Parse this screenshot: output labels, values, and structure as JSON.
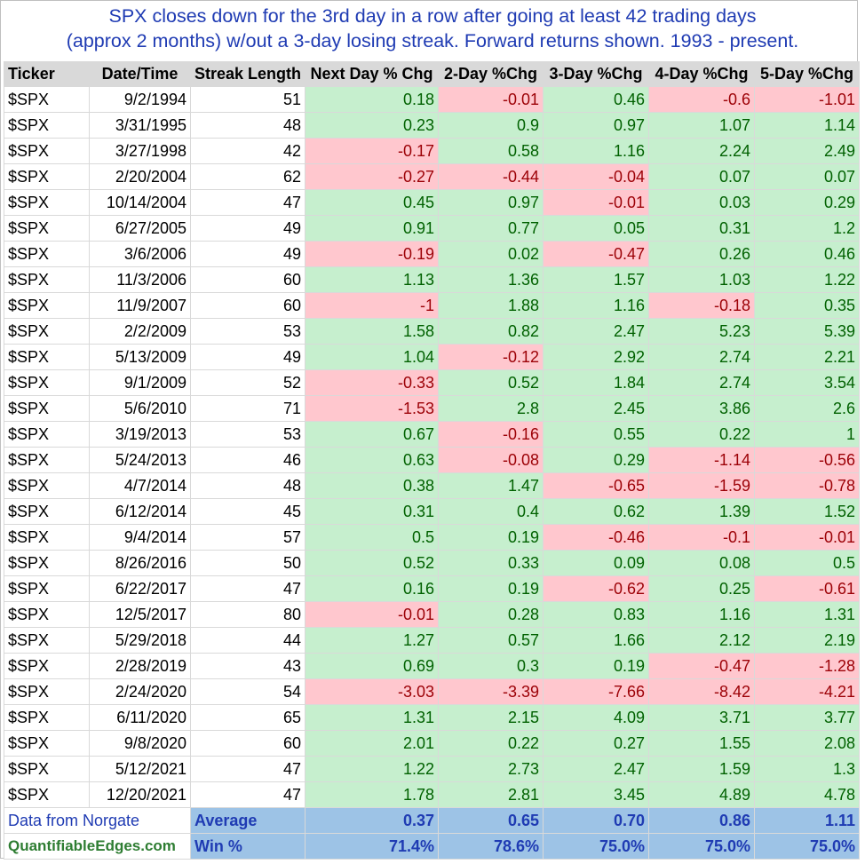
{
  "title": {
    "line1": "SPX closes down for the 3rd day in a row after going at least 42 trading days",
    "line2": "(approx 2 months) w/out a 3-day losing streak. Forward returns shown. 1993 - present."
  },
  "columns": [
    "Ticker",
    "Date/Time",
    "Streak Length",
    "Next Day % Chg",
    "2-Day %Chg",
    "3-Day %Chg",
    "4-Day %Chg",
    "5-Day %Chg"
  ],
  "rows": [
    [
      "$SPX",
      "9/2/1994",
      "51",
      "0.18",
      "-0.01",
      "0.46",
      "-0.6",
      "-1.01"
    ],
    [
      "$SPX",
      "3/31/1995",
      "48",
      "0.23",
      "0.9",
      "0.97",
      "1.07",
      "1.14"
    ],
    [
      "$SPX",
      "3/27/1998",
      "42",
      "-0.17",
      "0.58",
      "1.16",
      "2.24",
      "2.49"
    ],
    [
      "$SPX",
      "2/20/2004",
      "62",
      "-0.27",
      "-0.44",
      "-0.04",
      "0.07",
      "0.07"
    ],
    [
      "$SPX",
      "10/14/2004",
      "47",
      "0.45",
      "0.97",
      "-0.01",
      "0.03",
      "0.29"
    ],
    [
      "$SPX",
      "6/27/2005",
      "49",
      "0.91",
      "0.77",
      "0.05",
      "0.31",
      "1.2"
    ],
    [
      "$SPX",
      "3/6/2006",
      "49",
      "-0.19",
      "0.02",
      "-0.47",
      "0.26",
      "0.46"
    ],
    [
      "$SPX",
      "11/3/2006",
      "60",
      "1.13",
      "1.36",
      "1.57",
      "1.03",
      "1.22"
    ],
    [
      "$SPX",
      "11/9/2007",
      "60",
      "-1",
      "1.88",
      "1.16",
      "-0.18",
      "0.35"
    ],
    [
      "$SPX",
      "2/2/2009",
      "53",
      "1.58",
      "0.82",
      "2.47",
      "5.23",
      "5.39"
    ],
    [
      "$SPX",
      "5/13/2009",
      "49",
      "1.04",
      "-0.12",
      "2.92",
      "2.74",
      "2.21"
    ],
    [
      "$SPX",
      "9/1/2009",
      "52",
      "-0.33",
      "0.52",
      "1.84",
      "2.74",
      "3.54"
    ],
    [
      "$SPX",
      "5/6/2010",
      "71",
      "-1.53",
      "2.8",
      "2.45",
      "3.86",
      "2.6"
    ],
    [
      "$SPX",
      "3/19/2013",
      "53",
      "0.67",
      "-0.16",
      "0.55",
      "0.22",
      "1"
    ],
    [
      "$SPX",
      "5/24/2013",
      "46",
      "0.63",
      "-0.08",
      "0.29",
      "-1.14",
      "-0.56"
    ],
    [
      "$SPX",
      "4/7/2014",
      "48",
      "0.38",
      "1.47",
      "-0.65",
      "-1.59",
      "-0.78"
    ],
    [
      "$SPX",
      "6/12/2014",
      "45",
      "0.31",
      "0.4",
      "0.62",
      "1.39",
      "1.52"
    ],
    [
      "$SPX",
      "9/4/2014",
      "57",
      "0.5",
      "0.19",
      "-0.46",
      "-0.1",
      "-0.01"
    ],
    [
      "$SPX",
      "8/26/2016",
      "50",
      "0.52",
      "0.33",
      "0.09",
      "0.08",
      "0.5"
    ],
    [
      "$SPX",
      "6/22/2017",
      "47",
      "0.16",
      "0.19",
      "-0.62",
      "0.25",
      "-0.61"
    ],
    [
      "$SPX",
      "12/5/2017",
      "80",
      "-0.01",
      "0.28",
      "0.83",
      "1.16",
      "1.31"
    ],
    [
      "$SPX",
      "5/29/2018",
      "44",
      "1.27",
      "0.57",
      "1.66",
      "2.12",
      "2.19"
    ],
    [
      "$SPX",
      "2/28/2019",
      "43",
      "0.69",
      "0.3",
      "0.19",
      "-0.47",
      "-1.28"
    ],
    [
      "$SPX",
      "2/24/2020",
      "54",
      "-3.03",
      "-3.39",
      "-7.66",
      "-8.42",
      "-4.21"
    ],
    [
      "$SPX",
      "6/11/2020",
      "65",
      "1.31",
      "2.15",
      "4.09",
      "3.71",
      "3.77"
    ],
    [
      "$SPX",
      "9/8/2020",
      "60",
      "2.01",
      "0.22",
      "0.27",
      "1.55",
      "2.08"
    ],
    [
      "$SPX",
      "5/12/2021",
      "47",
      "1.22",
      "2.73",
      "2.47",
      "1.59",
      "1.3"
    ],
    [
      "$SPX",
      "12/20/2021",
      "47",
      "1.78",
      "2.81",
      "3.45",
      "4.89",
      "4.78"
    ]
  ],
  "footer": {
    "source": "Data from Norgate",
    "brand": "QuantifiableEdges.com",
    "average_label": "Average",
    "average": [
      "0.37",
      "0.65",
      "0.70",
      "0.86",
      "1.11"
    ],
    "win_label": "Win %",
    "win": [
      "71.4%",
      "78.6%",
      "75.0%",
      "75.0%",
      "75.0%"
    ]
  },
  "colors": {
    "title": "#1f3bb3",
    "positive_fill": "#c6efce",
    "positive_text": "#006100",
    "negative_fill": "#ffc7ce",
    "negative_text": "#9c0006",
    "summary_fill": "#9dc3e6",
    "header_fill": "#d9d9d9",
    "brand_text": "#2e7d32"
  }
}
